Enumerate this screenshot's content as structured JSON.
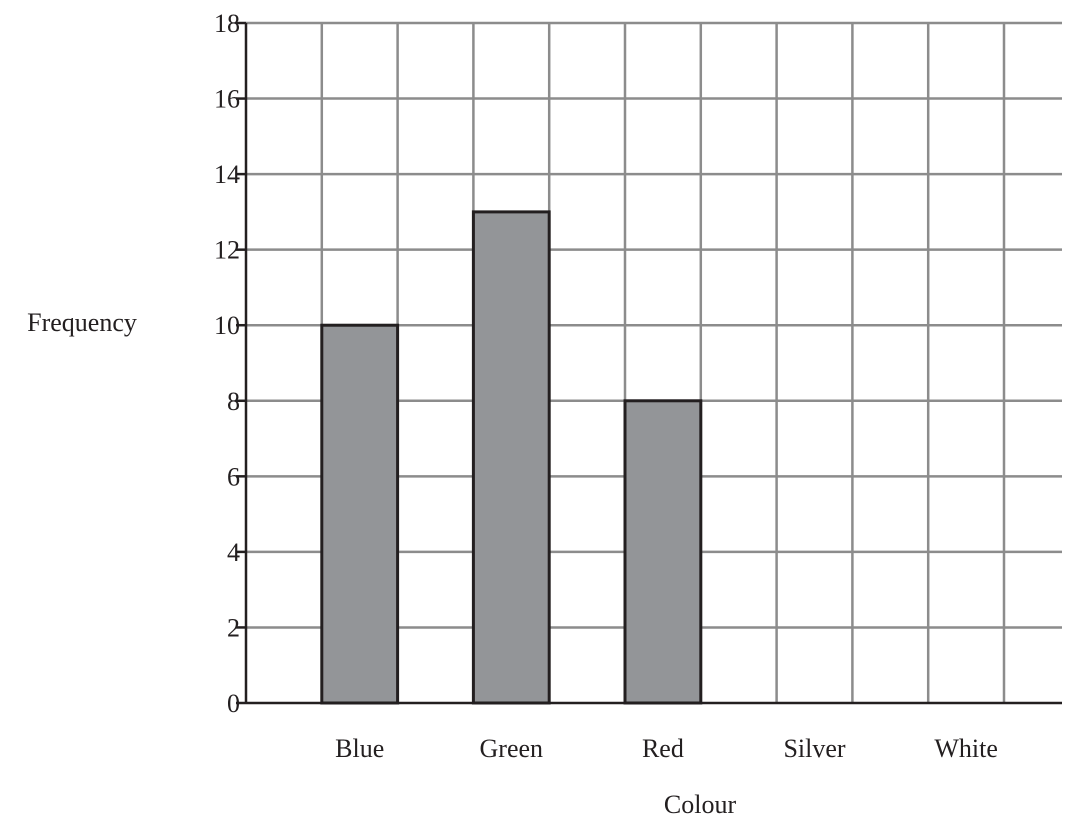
{
  "chart_data": {
    "type": "bar",
    "title": "",
    "xlabel": "Colour",
    "ylabel": "Frequency",
    "categories": [
      "Blue",
      "Green",
      "Red",
      "Silver",
      "White"
    ],
    "values": [
      10,
      13,
      8,
      null,
      null
    ],
    "ylim": [
      0,
      18
    ],
    "yticks": [
      "0",
      "2",
      "4",
      "6",
      "8",
      "10",
      "12",
      "14",
      "16",
      "18"
    ],
    "grid": true,
    "bar_color": "#939598",
    "bar_edge_color": "#231f20",
    "grid_color": "#8c8c8c",
    "axis_color": "#231f20"
  }
}
